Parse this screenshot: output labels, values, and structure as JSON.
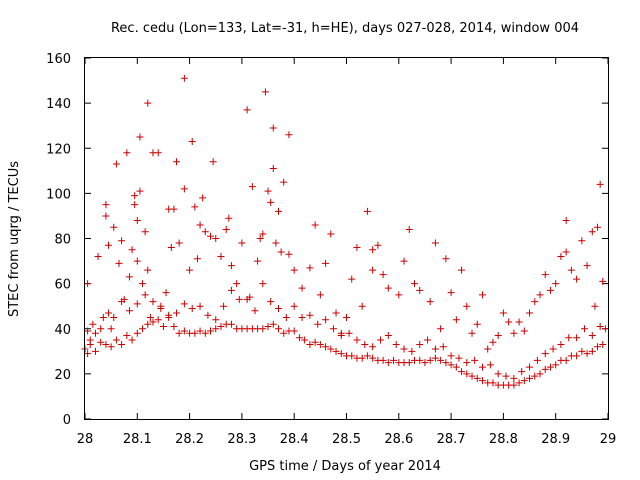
{
  "chart_data": {
    "type": "scatter",
    "title": "Rec. cedu (Lon=133, Lat=-31, h=HE), days 027-028, 2014, window 004",
    "xlabel": "GPS time / Days of year 2014",
    "ylabel": "STEC from uqrg / TECUs",
    "xlim": [
      28,
      29
    ],
    "ylim": [
      0,
      160
    ],
    "xticks": [
      "28",
      "28.1",
      "28.2",
      "28.3",
      "28.4",
      "28.5",
      "28.6",
      "28.7",
      "28.8",
      "28.9",
      "29"
    ],
    "yticks": [
      "0",
      "20",
      "40",
      "60",
      "80",
      "100",
      "120",
      "140",
      "160"
    ],
    "grid": false,
    "marker": "plus",
    "color": "#cc0000",
    "series": [
      {
        "values": [
          [
            28.005,
            60
          ],
          [
            28.01,
            35
          ],
          [
            28.02,
            38
          ],
          [
            28.025,
            72
          ],
          [
            28.035,
            45
          ],
          [
            28.04,
            95
          ],
          [
            28.04,
            90
          ],
          [
            28.045,
            77
          ],
          [
            28.05,
            40
          ],
          [
            28.055,
            85
          ],
          [
            28.06,
            113
          ],
          [
            28.065,
            69
          ],
          [
            28.07,
            79
          ],
          [
            28.075,
            53
          ],
          [
            28.08,
            118
          ],
          [
            28.085,
            63
          ],
          [
            28.09,
            75
          ],
          [
            28.095,
            99
          ],
          [
            28.095,
            95
          ],
          [
            28.1,
            88
          ],
          [
            28.1,
            70
          ],
          [
            28.105,
            101
          ],
          [
            28.105,
            125
          ],
          [
            28.11,
            60
          ],
          [
            28.115,
            83
          ],
          [
            28.12,
            140
          ],
          [
            28.12,
            66
          ],
          [
            28.125,
            45
          ],
          [
            28.13,
            118
          ],
          [
            28.14,
            118
          ],
          [
            28.145,
            49
          ],
          [
            28.155,
            56
          ],
          [
            28.16,
            93
          ],
          [
            28.165,
            76
          ],
          [
            28.17,
            93
          ],
          [
            28.175,
            114
          ],
          [
            28.18,
            78
          ],
          [
            28.19,
            151
          ],
          [
            28.19,
            102
          ],
          [
            28.2,
            66
          ],
          [
            28.205,
            123
          ],
          [
            28.21,
            94
          ],
          [
            28.215,
            71
          ],
          [
            28.22,
            86
          ],
          [
            28.225,
            98
          ],
          [
            28.23,
            83
          ],
          [
            28.24,
            81
          ],
          [
            28.245,
            114
          ],
          [
            28.25,
            80
          ],
          [
            28.26,
            72
          ],
          [
            28.27,
            84
          ],
          [
            28.275,
            89
          ],
          [
            28.28,
            68
          ],
          [
            28.29,
            60
          ],
          [
            28.3,
            78
          ],
          [
            28.31,
            137
          ],
          [
            28.315,
            54
          ],
          [
            28.32,
            103
          ],
          [
            28.33,
            70
          ],
          [
            28.335,
            80
          ],
          [
            28.34,
            82
          ],
          [
            28.345,
            145
          ],
          [
            28.35,
            101
          ],
          [
            28.355,
            96
          ],
          [
            28.36,
            111
          ],
          [
            28.36,
            129
          ],
          [
            28.365,
            78
          ],
          [
            28.37,
            92
          ],
          [
            28.375,
            74
          ],
          [
            28.38,
            105
          ],
          [
            28.39,
            126
          ],
          [
            28.39,
            73
          ],
          [
            28.4,
            66
          ],
          [
            28.415,
            58
          ],
          [
            28.43,
            67
          ],
          [
            28.44,
            86
          ],
          [
            28.45,
            55
          ],
          [
            28.46,
            69
          ],
          [
            28.47,
            82
          ],
          [
            28.48,
            47
          ],
          [
            28.49,
            38
          ],
          [
            28.5,
            45
          ],
          [
            28.51,
            62
          ],
          [
            28.52,
            76
          ],
          [
            28.53,
            50
          ],
          [
            28.54,
            92
          ],
          [
            28.55,
            66
          ],
          [
            28.55,
            75
          ],
          [
            28.56,
            77
          ],
          [
            28.57,
            64
          ],
          [
            28.58,
            58
          ],
          [
            28.6,
            55
          ],
          [
            28.61,
            70
          ],
          [
            28.62,
            84
          ],
          [
            28.63,
            60
          ],
          [
            28.64,
            57
          ],
          [
            28.66,
            52
          ],
          [
            28.67,
            78
          ],
          [
            28.68,
            40
          ],
          [
            28.69,
            71
          ],
          [
            28.7,
            56
          ],
          [
            28.71,
            44
          ],
          [
            28.72,
            66
          ],
          [
            28.73,
            50
          ],
          [
            28.74,
            38
          ],
          [
            28.75,
            42
          ],
          [
            28.76,
            55
          ],
          [
            28.77,
            31
          ],
          [
            28.78,
            34
          ],
          [
            28.79,
            37
          ],
          [
            28.8,
            47
          ],
          [
            28.81,
            43
          ],
          [
            28.82,
            38
          ],
          [
            28.83,
            43
          ],
          [
            28.84,
            39
          ],
          [
            28.85,
            47
          ],
          [
            28.86,
            52
          ],
          [
            28.87,
            55
          ],
          [
            28.88,
            64
          ],
          [
            28.89,
            57
          ],
          [
            28.9,
            60
          ],
          [
            28.91,
            72
          ],
          [
            28.92,
            88
          ],
          [
            28.92,
            74
          ],
          [
            28.93,
            66
          ],
          [
            28.94,
            62
          ],
          [
            28.95,
            79
          ],
          [
            28.96,
            68
          ],
          [
            28.97,
            83
          ],
          [
            28.975,
            50
          ],
          [
            28.98,
            85
          ],
          [
            28.985,
            104
          ],
          [
            28.99,
            61
          ]
        ]
      },
      {
        "values": [
          [
            28.0,
            31
          ],
          [
            28.005,
            29
          ],
          [
            28.01,
            33
          ],
          [
            28.02,
            30
          ],
          [
            28.03,
            34
          ],
          [
            28.04,
            33
          ],
          [
            28.05,
            32
          ],
          [
            28.06,
            35
          ],
          [
            28.07,
            33
          ],
          [
            28.08,
            37
          ],
          [
            28.09,
            35
          ],
          [
            28.1,
            38
          ],
          [
            28.11,
            40
          ],
          [
            28.12,
            42
          ],
          [
            28.13,
            43
          ],
          [
            28.14,
            44
          ],
          [
            28.15,
            41
          ],
          [
            28.16,
            45
          ],
          [
            28.17,
            41
          ],
          [
            28.18,
            38
          ],
          [
            28.19,
            39
          ],
          [
            28.2,
            38
          ],
          [
            28.21,
            38
          ],
          [
            28.22,
            39
          ],
          [
            28.23,
            38
          ],
          [
            28.24,
            39
          ],
          [
            28.25,
            40
          ],
          [
            28.26,
            41
          ],
          [
            28.27,
            42
          ],
          [
            28.28,
            42
          ],
          [
            28.29,
            40
          ],
          [
            28.3,
            40
          ],
          [
            28.31,
            40
          ],
          [
            28.32,
            40
          ],
          [
            28.33,
            40
          ],
          [
            28.34,
            40
          ],
          [
            28.35,
            41
          ],
          [
            28.36,
            42
          ],
          [
            28.37,
            40
          ],
          [
            28.38,
            38
          ],
          [
            28.39,
            39
          ],
          [
            28.4,
            39
          ],
          [
            28.41,
            36
          ],
          [
            28.42,
            35
          ],
          [
            28.43,
            33
          ],
          [
            28.44,
            34
          ],
          [
            28.45,
            33
          ],
          [
            28.46,
            32
          ],
          [
            28.47,
            31
          ],
          [
            28.48,
            30
          ],
          [
            28.49,
            29
          ],
          [
            28.5,
            28
          ],
          [
            28.51,
            28
          ],
          [
            28.52,
            27
          ],
          [
            28.53,
            27
          ],
          [
            28.54,
            28
          ],
          [
            28.55,
            27
          ],
          [
            28.56,
            26
          ],
          [
            28.57,
            26
          ],
          [
            28.58,
            25
          ],
          [
            28.59,
            26
          ],
          [
            28.6,
            25
          ],
          [
            28.61,
            25
          ],
          [
            28.62,
            25
          ],
          [
            28.63,
            26
          ],
          [
            28.64,
            26
          ],
          [
            28.65,
            25
          ],
          [
            28.66,
            26
          ],
          [
            28.67,
            27
          ],
          [
            28.68,
            26
          ],
          [
            28.69,
            25
          ],
          [
            28.7,
            24
          ],
          [
            28.71,
            23
          ],
          [
            28.72,
            21
          ],
          [
            28.73,
            20
          ],
          [
            28.74,
            19
          ],
          [
            28.75,
            18
          ],
          [
            28.76,
            17
          ],
          [
            28.77,
            16
          ],
          [
            28.78,
            16
          ],
          [
            28.79,
            15
          ],
          [
            28.8,
            15
          ],
          [
            28.81,
            15
          ],
          [
            28.82,
            15
          ],
          [
            28.83,
            16
          ],
          [
            28.84,
            17
          ],
          [
            28.85,
            18
          ],
          [
            28.86,
            19
          ],
          [
            28.87,
            20
          ],
          [
            28.88,
            22
          ],
          [
            28.89,
            23
          ],
          [
            28.9,
            24
          ],
          [
            28.91,
            26
          ],
          [
            28.92,
            26
          ],
          [
            28.93,
            28
          ],
          [
            28.94,
            28
          ],
          [
            28.95,
            30
          ],
          [
            28.96,
            29
          ],
          [
            28.97,
            30
          ],
          [
            28.98,
            32
          ],
          [
            28.99,
            33
          ]
        ]
      },
      {
        "values": [
          [
            28.005,
            39
          ],
          [
            28.015,
            42
          ],
          [
            28.03,
            40
          ],
          [
            28.045,
            47
          ],
          [
            28.055,
            45
          ],
          [
            28.07,
            52
          ],
          [
            28.085,
            48
          ],
          [
            28.1,
            51
          ],
          [
            28.115,
            55
          ],
          [
            28.13,
            52
          ],
          [
            28.145,
            50
          ],
          [
            28.16,
            46
          ],
          [
            28.175,
            47
          ],
          [
            28.19,
            51
          ],
          [
            28.205,
            49
          ],
          [
            28.22,
            50
          ],
          [
            28.235,
            46
          ],
          [
            28.25,
            44
          ],
          [
            28.265,
            50
          ],
          [
            28.28,
            57
          ],
          [
            28.295,
            53
          ],
          [
            28.31,
            53
          ],
          [
            28.325,
            48
          ],
          [
            28.34,
            60
          ],
          [
            28.355,
            52
          ],
          [
            28.37,
            49
          ],
          [
            28.385,
            45
          ],
          [
            28.4,
            50
          ],
          [
            28.415,
            45
          ],
          [
            28.43,
            46
          ],
          [
            28.445,
            42
          ],
          [
            28.46,
            44
          ],
          [
            28.475,
            40
          ],
          [
            28.49,
            37
          ],
          [
            28.505,
            38
          ],
          [
            28.52,
            35
          ],
          [
            28.535,
            33
          ],
          [
            28.55,
            32
          ],
          [
            28.565,
            35
          ],
          [
            28.58,
            37
          ],
          [
            28.595,
            33
          ],
          [
            28.61,
            31
          ],
          [
            28.625,
            30
          ],
          [
            28.64,
            33
          ],
          [
            28.655,
            35
          ],
          [
            28.67,
            31
          ],
          [
            28.685,
            32
          ],
          [
            28.7,
            28
          ],
          [
            28.715,
            27
          ],
          [
            28.73,
            25
          ],
          [
            28.745,
            26
          ],
          [
            28.76,
            23
          ],
          [
            28.775,
            24
          ],
          [
            28.79,
            20
          ],
          [
            28.805,
            19
          ],
          [
            28.82,
            18
          ],
          [
            28.835,
            21
          ],
          [
            28.85,
            23
          ],
          [
            28.865,
            26
          ],
          [
            28.88,
            29
          ],
          [
            28.895,
            31
          ],
          [
            28.91,
            33
          ],
          [
            28.925,
            36
          ],
          [
            28.94,
            36
          ],
          [
            28.955,
            40
          ],
          [
            28.97,
            37
          ],
          [
            28.985,
            41
          ],
          [
            28.995,
            40
          ]
        ]
      }
    ]
  }
}
